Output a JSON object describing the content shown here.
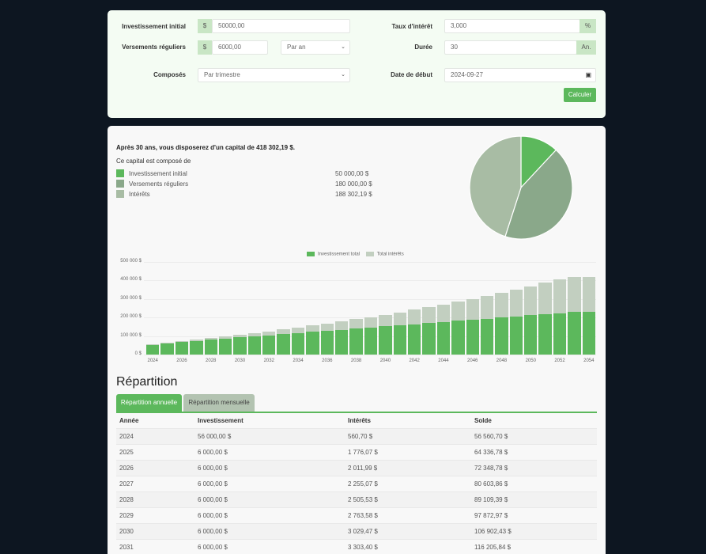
{
  "form": {
    "initial_label": "Investissement initial",
    "initial_addon": "$",
    "initial_value": "50000,00",
    "regular_label": "Versements réguliers",
    "regular_addon": "$",
    "regular_value": "6000,00",
    "frequency_value": "Par an",
    "compound_label": "Composés",
    "compound_value": "Par trimestre",
    "rate_label": "Taux d'intérêt",
    "rate_value": "3,000",
    "rate_addon": "%",
    "duration_label": "Durée",
    "duration_value": "30",
    "duration_addon": "An.",
    "start_label": "Date de début",
    "start_value": "2024-09-27",
    "calculate_label": "Calculer"
  },
  "summary": {
    "title": "Après 30 ans, vous disposerez d'un capital de 418 302,19 $.",
    "subtitle": "Ce capital est composé de",
    "items": [
      {
        "label": "Investissement initial",
        "value": "50 000,00 $",
        "color": "#5cb85c"
      },
      {
        "label": "Versements réguliers",
        "value": "180 000,00 $",
        "color": "#8aa88a"
      },
      {
        "label": "Intérêts",
        "value": "188 302,19 $",
        "color": "#a8bca4"
      }
    ]
  },
  "chart_data": [
    {
      "type": "pie",
      "categories": [
        "Investissement initial",
        "Versements réguliers",
        "Intérêts"
      ],
      "values": [
        50000.0,
        180000.0,
        188302.19
      ],
      "colors": [
        "#5cb85c",
        "#8aa88a",
        "#a8bca4"
      ]
    },
    {
      "type": "bar",
      "stacked": true,
      "title": "",
      "legend": [
        "Investissement total",
        "Total intérêts"
      ],
      "legend_position": "top",
      "categories": [
        2024,
        2025,
        2026,
        2027,
        2028,
        2029,
        2030,
        2031,
        2032,
        2033,
        2034,
        2035,
        2036,
        2037,
        2038,
        2039,
        2040,
        2041,
        2042,
        2043,
        2044,
        2045,
        2046,
        2047,
        2048,
        2049,
        2050,
        2051,
        2052,
        2053,
        2054
      ],
      "x_tick_labels": [
        "2024",
        "2026",
        "2028",
        "2030",
        "2032",
        "2034",
        "2036",
        "2038",
        "2040",
        "2042",
        "2044",
        "2046",
        "2048",
        "2050",
        "2052",
        "2054"
      ],
      "y_tick_labels": [
        "0 $",
        "100 000 $",
        "200 000 $",
        "300 000 $",
        "400 000 $",
        "500 000 $"
      ],
      "ylim": [
        0,
        500000
      ],
      "grid": true,
      "series": [
        {
          "name": "Investissement total",
          "color": "#5cb85c",
          "values": [
            56000,
            62000,
            68000,
            74000,
            80000,
            86000,
            92000,
            98000,
            104000,
            110000,
            116000,
            122000,
            128000,
            134000,
            140000,
            146000,
            152000,
            158000,
            164000,
            170000,
            176000,
            182000,
            188000,
            194000,
            200000,
            206000,
            212000,
            218000,
            224000,
            230000,
            230000
          ]
        },
        {
          "name": "Total intérêts",
          "color": "#c2cfc0",
          "values": [
            561,
            2337,
            4349,
            6604,
            9109,
            11873,
            14902,
            18206,
            21800,
            25700,
            29900,
            34400,
            39300,
            44600,
            50300,
            56400,
            63000,
            70000,
            77500,
            85500,
            94000,
            103000,
            112600,
            122800,
            133600,
            145100,
            157300,
            170200,
            183800,
            188302,
            188302
          ]
        }
      ]
    }
  ],
  "breakdown": {
    "title": "Répartition",
    "tabs": [
      {
        "label": "Répartition annuelle",
        "active": true
      },
      {
        "label": "Répartition mensuelle",
        "active": false
      }
    ],
    "headers": [
      "Année",
      "Investissement",
      "Intérêts",
      "Solde"
    ],
    "rows": [
      [
        "2024",
        "56 000,00 $",
        "560,70 $",
        "56 560,70 $"
      ],
      [
        "2025",
        "6 000,00 $",
        "1 776,07 $",
        "64 336,78 $"
      ],
      [
        "2026",
        "6 000,00 $",
        "2 011,99 $",
        "72 348,78 $"
      ],
      [
        "2027",
        "6 000,00 $",
        "2 255,07 $",
        "80 603,86 $"
      ],
      [
        "2028",
        "6 000,00 $",
        "2 505,53 $",
        "89 109,39 $"
      ],
      [
        "2029",
        "6 000,00 $",
        "2 763,58 $",
        "97 872,97 $"
      ],
      [
        "2030",
        "6 000,00 $",
        "3 029,47 $",
        "106 902,43 $"
      ],
      [
        "2031",
        "6 000,00 $",
        "3 303,40 $",
        "116 205,84 $"
      ]
    ]
  }
}
